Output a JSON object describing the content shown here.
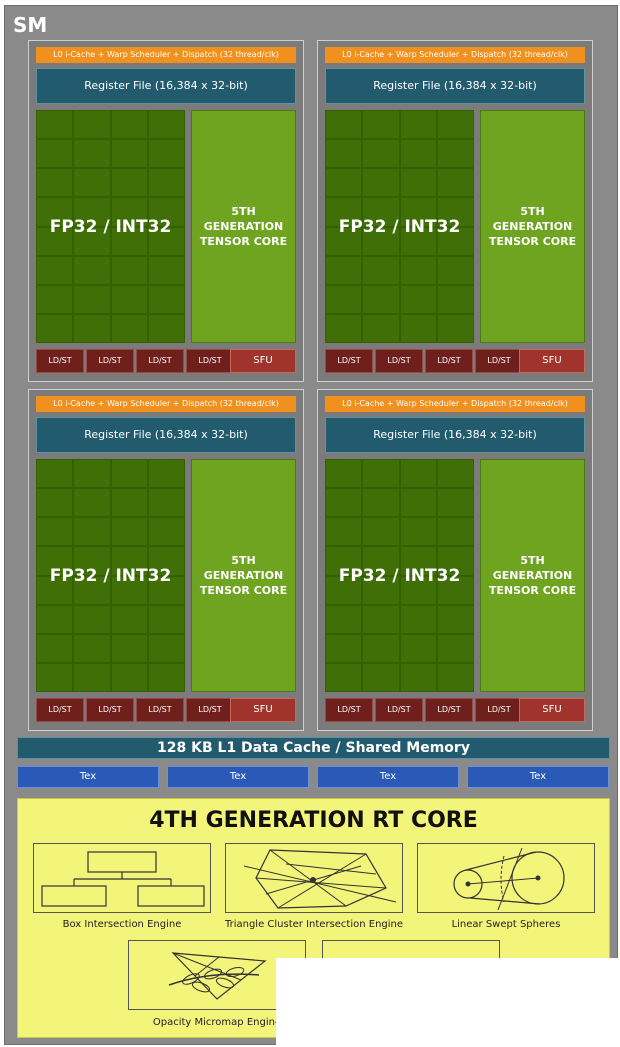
{
  "sm_label": "SM",
  "quadrants": [
    {
      "dispatch": "L0 i-Cache + Warp Scheduler + Dispatch (32 thread/clk)",
      "register_file": "Register File (16,384 x 32-bit)",
      "cores": "FP32 / INT32",
      "tensor": "5TH\nGENERATION\nTENSOR CORE",
      "ldst": [
        "LD/ST",
        "LD/ST",
        "LD/ST",
        "LD/ST"
      ],
      "sfu": "SFU"
    },
    {
      "dispatch": "L0 i-Cache + Warp Scheduler + Dispatch (32 thread/clk)",
      "register_file": "Register File (16,384 x 32-bit)",
      "cores": "FP32 / INT32",
      "tensor": "5TH\nGENERATION\nTENSOR CORE",
      "ldst": [
        "LD/ST",
        "LD/ST",
        "LD/ST",
        "LD/ST"
      ],
      "sfu": "SFU"
    },
    {
      "dispatch": "L0 i-Cache + Warp Scheduler + Dispatch (32 thread/clk)",
      "register_file": "Register File (16,384 x 32-bit)",
      "cores": "FP32 / INT32",
      "tensor": "5TH\nGENERATION\nTENSOR CORE",
      "ldst": [
        "LD/ST",
        "LD/ST",
        "LD/ST",
        "LD/ST"
      ],
      "sfu": "SFU"
    },
    {
      "dispatch": "L0 i-Cache + Warp Scheduler + Dispatch (32 thread/clk)",
      "register_file": "Register File (16,384 x 32-bit)",
      "cores": "FP32 / INT32",
      "tensor": "5TH\nGENERATION\nTENSOR CORE",
      "ldst": [
        "LD/ST",
        "LD/ST",
        "LD/ST",
        "LD/ST"
      ],
      "sfu": "SFU"
    }
  ],
  "l1_cache": "128 KB L1 Data Cache / Shared Memory",
  "tex_units": [
    "Tex",
    "Tex",
    "Tex",
    "Tex"
  ],
  "rt_core": {
    "title": "4TH GENERATION RT CORE",
    "engines": [
      {
        "label": "Box Intersection Engine",
        "icon": "box-hierarchy-icon"
      },
      {
        "label": "Triangle Cluster Intersection Engine",
        "icon": "triangle-cluster-icon"
      },
      {
        "label": "Linear Swept Spheres",
        "icon": "swept-spheres-icon"
      },
      {
        "label": "Opacity Micromap Engine",
        "icon": "leaf-micromap-icon"
      }
    ]
  },
  "colors": {
    "sm_background": "#8a8a8a",
    "dispatch_bar": "#f0901f",
    "register_file": "#215b6d",
    "cuda_cores": "#3f6f06",
    "tensor_core": "#6ea420",
    "ldst": "#6f1f1c",
    "sfu": "#a0332c",
    "tex": "#2a59b8",
    "rt_core": "#f3f47a"
  }
}
